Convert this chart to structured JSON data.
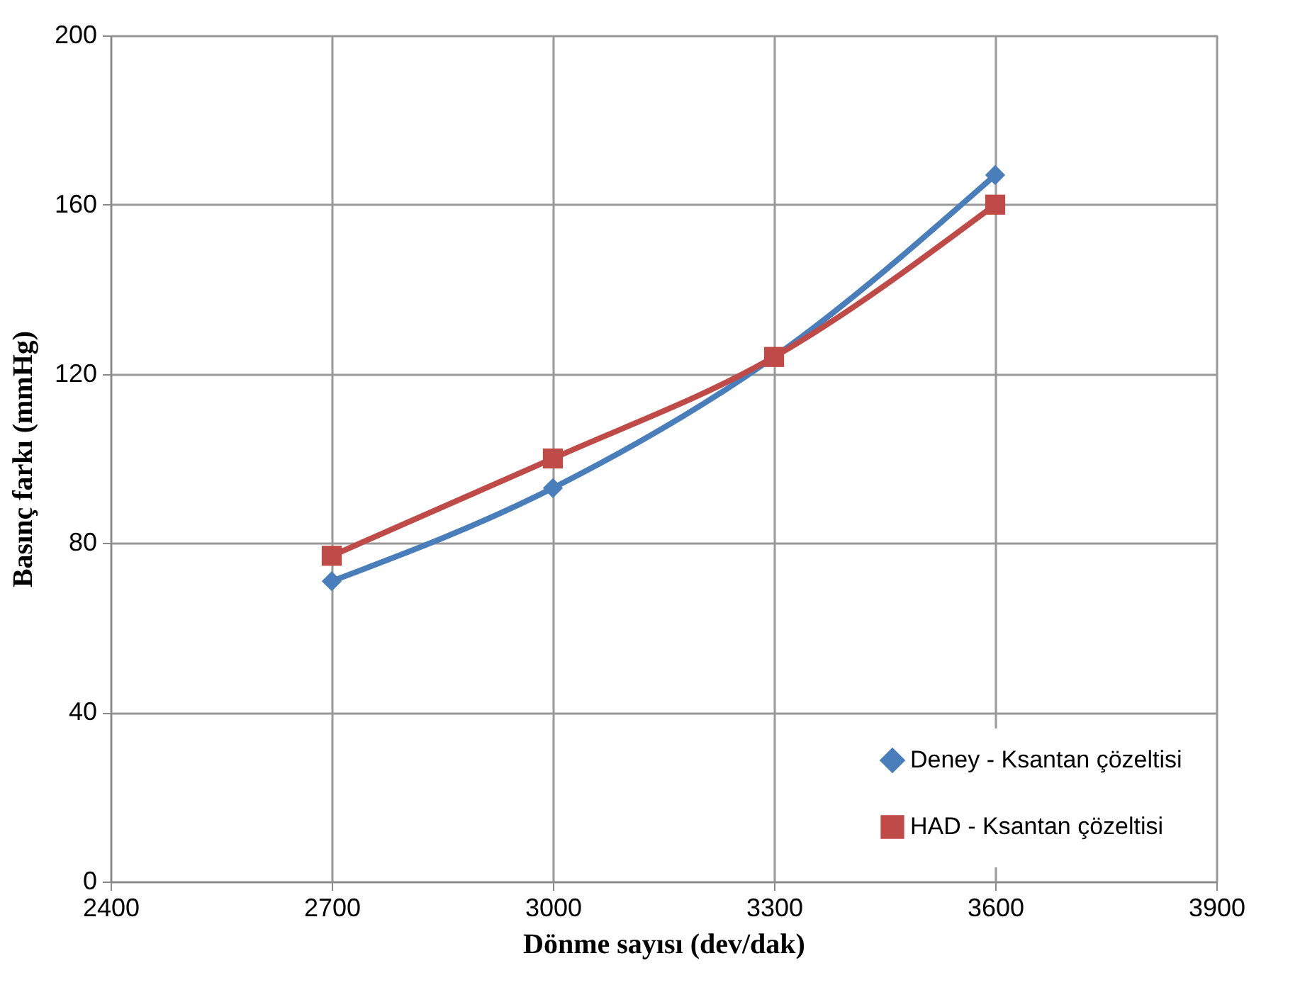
{
  "chart_data": {
    "type": "line",
    "xlabel": "Dönme sayısı (dev/dak)",
    "ylabel": "Basınç farkı (mmHg)",
    "x": [
      2700,
      3000,
      3300,
      3600
    ],
    "series": [
      {
        "name": "Deney - Ksantan çözeltisi",
        "color": "#4a7ebb",
        "marker": "diamond",
        "values": [
          71,
          93,
          124,
          167
        ]
      },
      {
        "name": "HAD - Ksantan çözeltisi",
        "color": "#be4b48",
        "marker": "square",
        "values": [
          77,
          100,
          124,
          160
        ]
      }
    ],
    "xlim": [
      2400,
      3900
    ],
    "xticks": [
      2400,
      2700,
      3000,
      3300,
      3600,
      3900
    ],
    "ylim": [
      0,
      200
    ],
    "yticks": [
      0,
      40,
      80,
      120,
      160,
      200
    ],
    "grid": true,
    "legend": "bottom right",
    "line_style": "solid"
  }
}
